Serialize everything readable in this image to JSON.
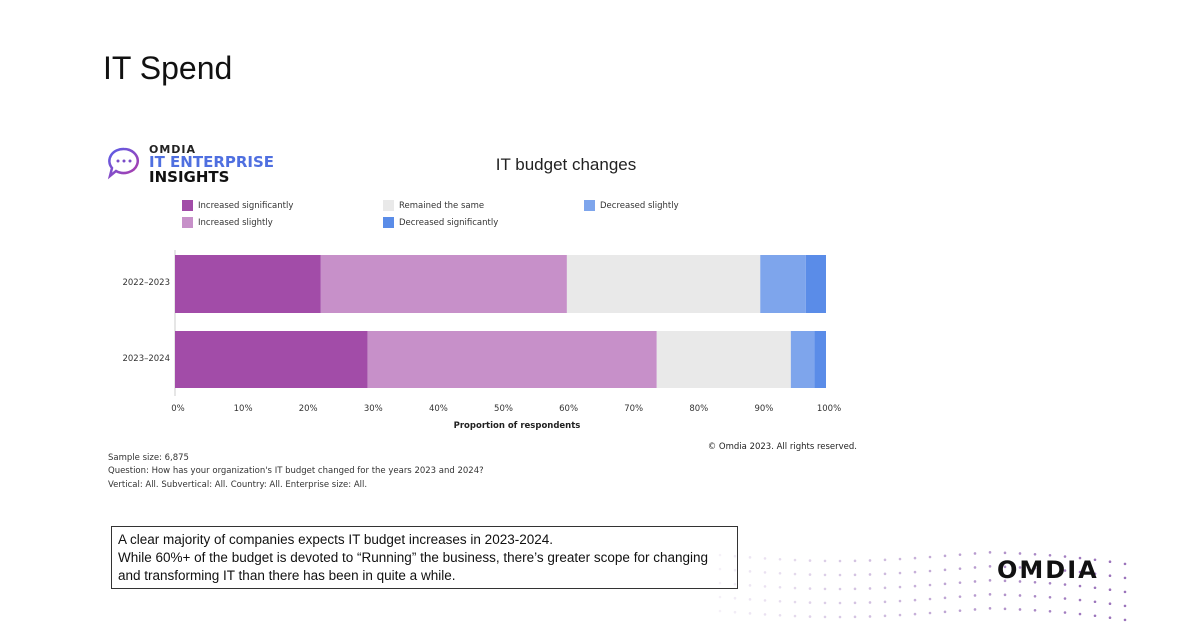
{
  "slide": {
    "title": "IT Spend"
  },
  "logo": {
    "brand": "OMDIA",
    "line1": "IT ENTERPRISE",
    "line2": "INSIGHTS"
  },
  "chart_data": {
    "type": "bar",
    "orientation": "horizontal-stacked-100",
    "title": "IT budget changes",
    "xlabel": "Proportion of respondents",
    "ylabel": "",
    "xlim": [
      0,
      100
    ],
    "x_ticks": [
      "0%",
      "10%",
      "20%",
      "30%",
      "40%",
      "50%",
      "60%",
      "70%",
      "80%",
      "90%",
      "100%"
    ],
    "categories": [
      "2022–2023",
      "2023–2024"
    ],
    "legend_position": "top",
    "series": [
      {
        "name": "Increased significantly",
        "color": "#a24ca8",
        "values": [
          22.4,
          29.6
        ]
      },
      {
        "name": "Increased slightly",
        "color": "#c790c9",
        "values": [
          37.8,
          44.4
        ]
      },
      {
        "name": "Remained the same",
        "color": "#e9e9e9",
        "values": [
          29.7,
          20.6
        ]
      },
      {
        "name": "Decreased slightly",
        "color": "#7ea5ec",
        "values": [
          7.0,
          3.6
        ]
      },
      {
        "name": "Decreased significantly",
        "color": "#5a8ce8",
        "values": [
          3.1,
          1.8
        ]
      }
    ]
  },
  "copyright": "© Omdia 2023. All rights reserved.",
  "notes": [
    "Sample size: 6,875",
    "Question: How has your organization's IT budget changed for the years 2023 and 2024?",
    "Vertical: All. Subvertical: All. Country: All. Enterprise size: All."
  ],
  "callout": [
    "A clear majority of companies expects IT budget increases in 2023-2024.",
    "While 60%+ of the budget is devoted to “Running” the business, there’s greater scope for changing and transforming IT than there has been in quite a while."
  ],
  "footer_logo": "OMDIA"
}
